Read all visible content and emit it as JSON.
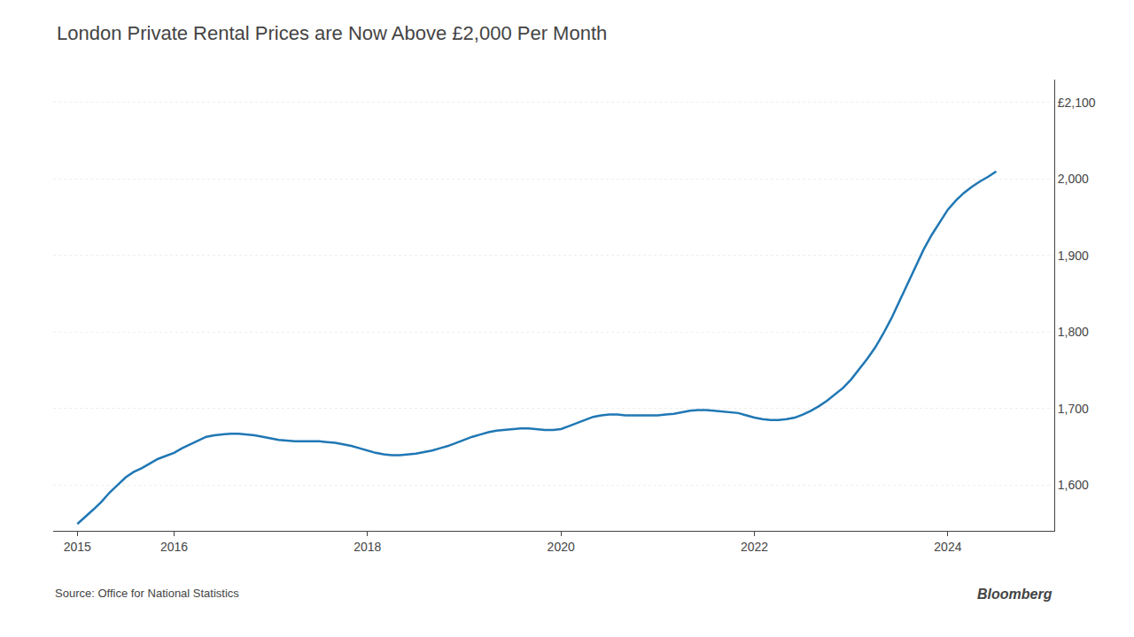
{
  "chart_data": {
    "type": "line",
    "title": "London Private Rental Prices are Now Above £2,000 Per Month",
    "annotations": [
      "Source: Office for National Statistics",
      "Bloomberg"
    ],
    "x": [
      2015.0,
      2015.083,
      2015.167,
      2015.25,
      2015.333,
      2015.417,
      2015.5,
      2015.583,
      2015.667,
      2015.75,
      2015.833,
      2015.917,
      2016.0,
      2016.083,
      2016.167,
      2016.25,
      2016.333,
      2016.417,
      2016.5,
      2016.583,
      2016.667,
      2016.75,
      2016.833,
      2016.917,
      2017.0,
      2017.083,
      2017.167,
      2017.25,
      2017.333,
      2017.417,
      2017.5,
      2017.583,
      2017.667,
      2017.75,
      2017.833,
      2017.917,
      2018.0,
      2018.083,
      2018.167,
      2018.25,
      2018.333,
      2018.417,
      2018.5,
      2018.583,
      2018.667,
      2018.75,
      2018.833,
      2018.917,
      2019.0,
      2019.083,
      2019.167,
      2019.25,
      2019.333,
      2019.417,
      2019.5,
      2019.583,
      2019.667,
      2019.75,
      2019.833,
      2019.917,
      2020.0,
      2020.083,
      2020.167,
      2020.25,
      2020.333,
      2020.417,
      2020.5,
      2020.583,
      2020.667,
      2020.75,
      2020.833,
      2020.917,
      2021.0,
      2021.083,
      2021.167,
      2021.25,
      2021.333,
      2021.417,
      2021.5,
      2021.583,
      2021.667,
      2021.75,
      2021.833,
      2021.917,
      2022.0,
      2022.083,
      2022.167,
      2022.25,
      2022.333,
      2022.417,
      2022.5,
      2022.583,
      2022.667,
      2022.75,
      2022.833,
      2022.917,
      2023.0,
      2023.083,
      2023.167,
      2023.25,
      2023.333,
      2023.417,
      2023.5,
      2023.583,
      2023.667,
      2023.75,
      2023.833,
      2023.917,
      2024.0,
      2024.083,
      2024.167,
      2024.25,
      2024.333,
      2024.417,
      2024.5
    ],
    "values": [
      1549,
      1558,
      1568,
      1578,
      1590,
      1600,
      1610,
      1617,
      1622,
      1628,
      1634,
      1638,
      1642,
      1648,
      1653,
      1658,
      1663,
      1665,
      1666,
      1667,
      1667,
      1666,
      1665,
      1663,
      1661,
      1659,
      1658,
      1657,
      1657,
      1657,
      1657,
      1656,
      1655,
      1653,
      1651,
      1648,
      1645,
      1642,
      1640,
      1639,
      1639,
      1640,
      1641,
      1643,
      1645,
      1648,
      1651,
      1655,
      1659,
      1663,
      1666,
      1669,
      1671,
      1672,
      1673,
      1674,
      1674,
      1673,
      1672,
      1672,
      1673,
      1677,
      1681,
      1685,
      1689,
      1691,
      1692,
      1692,
      1691,
      1691,
      1691,
      1691,
      1691,
      1692,
      1693,
      1695,
      1697,
      1698,
      1698,
      1697,
      1696,
      1695,
      1694,
      1691,
      1688,
      1686,
      1685,
      1685,
      1686,
      1688,
      1692,
      1697,
      1703,
      1710,
      1718,
      1727,
      1738,
      1751,
      1765,
      1780,
      1798,
      1818,
      1840,
      1863,
      1886,
      1908,
      1927,
      1944,
      1960,
      1972,
      1982,
      1990,
      1997,
      2003,
      2010
    ],
    "xlim": [
      2014.75,
      2025.1
    ],
    "xticks": [
      2015,
      2016,
      2018,
      2020,
      2022,
      2024
    ],
    "ylim": [
      1540,
      2130
    ],
    "yticks": [
      {
        "value": 1600,
        "label": "1,600"
      },
      {
        "value": 1700,
        "label": "1,700"
      },
      {
        "value": 1800,
        "label": "1,800"
      },
      {
        "value": 1900,
        "label": "1,900"
      },
      {
        "value": 2000,
        "label": "2,000"
      },
      {
        "value": 2100,
        "label": "£2,100"
      }
    ],
    "grid": true
  }
}
